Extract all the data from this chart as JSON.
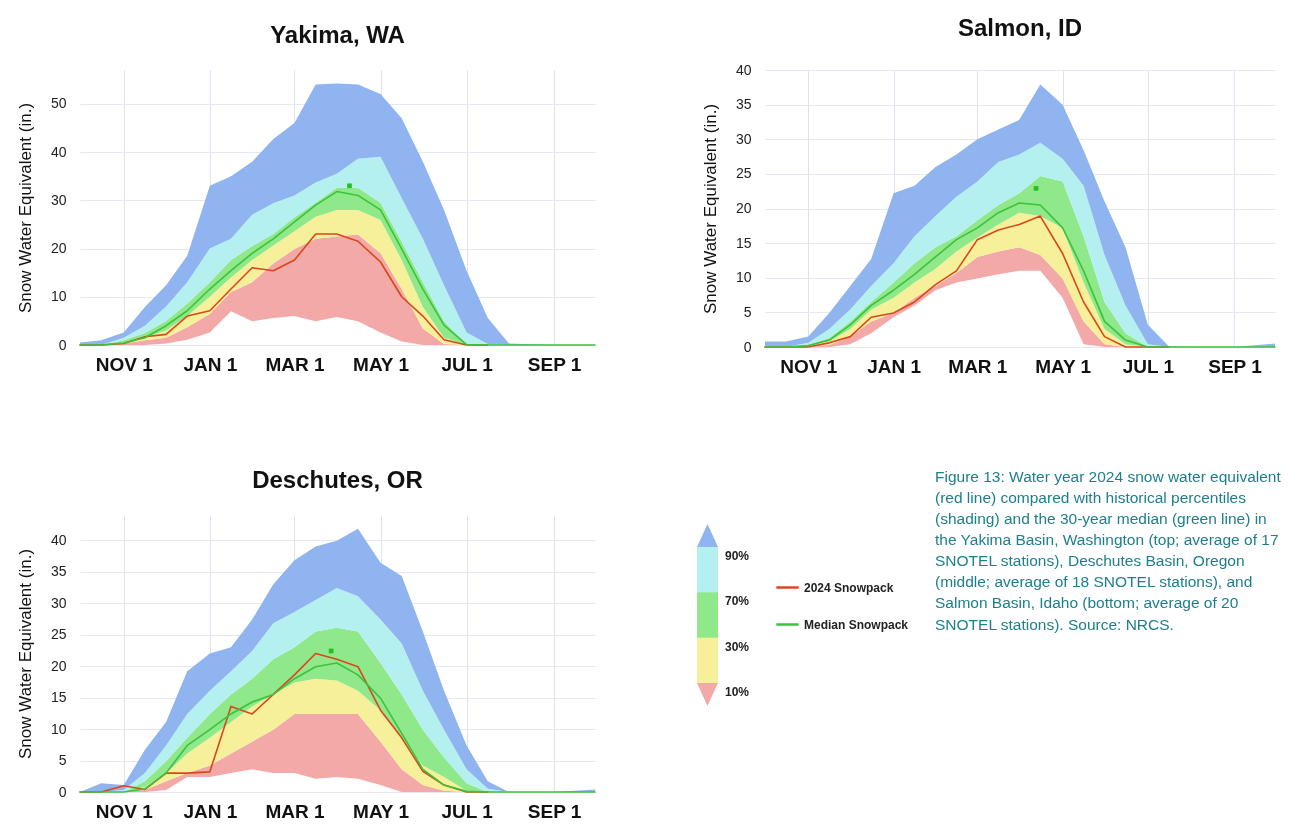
{
  "chart_data": [
    {
      "type": "area",
      "stacked": true,
      "title": "Yakima, WA",
      "ylabel": "Snow Water Equivalent (in.)",
      "x": [
        "2023-10-01",
        "2023-10-16",
        "2023-11-01",
        "2023-11-16",
        "2023-12-01",
        "2023-12-16",
        "2024-01-01",
        "2024-01-16",
        "2024-01-31",
        "2024-02-15",
        "2024-03-01",
        "2024-03-16",
        "2024-03-31",
        "2024-04-15",
        "2024-05-01",
        "2024-05-16",
        "2024-05-31",
        "2024-06-15",
        "2024-07-01",
        "2024-07-16",
        "2024-07-31",
        "2024-09-01",
        "2024-09-30"
      ],
      "xlim": [
        "2023-10-01",
        "2024-09-30"
      ],
      "xticks": [
        {
          "value": "2023-11-01",
          "label": "NOV 1"
        },
        {
          "value": "2024-01-01",
          "label": "JAN 1"
        },
        {
          "value": "2024-03-01",
          "label": "MAR 1"
        },
        {
          "value": "2024-05-01",
          "label": "MAY 1"
        },
        {
          "value": "2024-07-01",
          "label": "JUL 1"
        },
        {
          "value": "2024-09-01",
          "label": "SEP 1"
        }
      ],
      "ylim": [
        0,
        57
      ],
      "yticks": [
        0,
        10,
        20,
        30,
        40,
        50
      ],
      "grid": true,
      "series": [
        {
          "color": "#ffffff",
          "values": [
            0,
            0,
            0,
            0,
            0.3,
            1.1,
            2.6,
            7,
            4.9,
            5.6,
            6,
            4.9,
            5.8,
            4.9,
            2.6,
            0.7,
            0,
            0,
            0,
            0,
            0,
            0,
            0
          ]
        },
        {
          "color": "#f2a9a8",
          "values": [
            0,
            0,
            0.3,
            1,
            1.2,
            2.6,
            3.8,
            4,
            8.1,
            11.3,
            13.9,
            17.1,
            16.7,
            18,
            16.4,
            10.9,
            3.4,
            0.2,
            0,
            0,
            0,
            0,
            0
          ]
        },
        {
          "color": "#f7f09a",
          "values": [
            0,
            0,
            0.2,
            0.5,
            1.5,
            2.3,
            3.6,
            3,
            4.6,
            3.7,
            3.7,
            4.6,
            5.5,
            5.1,
            6.9,
            6,
            4.5,
            1.3,
            0,
            0,
            0,
            0,
            0
          ]
        },
        {
          "color": "#8fe88a",
          "values": [
            0,
            0,
            0.5,
            1,
            2,
            2.6,
            3,
            3.6,
            2.9,
            2.4,
            2.9,
            2.9,
            4.6,
            4.6,
            3.6,
            3.8,
            5.1,
            3.4,
            0,
            0,
            0,
            0,
            0
          ]
        },
        {
          "color": "#b5f0f0",
          "values": [
            0,
            0,
            0.5,
            1.5,
            3,
            4.4,
            7,
            4.4,
            6.5,
            6.4,
            4.5,
            4.2,
            2.9,
            6,
            9.5,
            9,
            9,
            7.5,
            2.6,
            0.2,
            0,
            0,
            0
          ]
        },
        {
          "color": "#8fb4ef",
          "values": [
            0.5,
            1,
            1.1,
            3.9,
            4.4,
            5.5,
            13,
            13,
            11,
            13.3,
            15,
            20.3,
            18.7,
            15.4,
            13,
            16.6,
            16,
            15.6,
            12.8,
            5.4,
            0.3,
            0,
            0
          ]
        },
        {
          "type": "line",
          "color": "#d9481c",
          "values": [
            0,
            0,
            0.3,
            1.7,
            2.2,
            6,
            7.1,
            11.6,
            16,
            15.4,
            17.6,
            23,
            23,
            21.5,
            17.2,
            10,
            6,
            1.1,
            0,
            0,
            null,
            null,
            null
          ]
        },
        {
          "type": "line",
          "color": "#3cc23c",
          "values": [
            0,
            0,
            0.4,
            1.5,
            4,
            7.1,
            11.6,
            15.4,
            19,
            22,
            25.5,
            29,
            31.8,
            31,
            28,
            19.9,
            11.6,
            4.1,
            0.1,
            0,
            0,
            0,
            0
          ]
        },
        {
          "type": "scatter",
          "color": "#22c022",
          "marker": "square",
          "x": [
            "2024-04-09"
          ],
          "values": [
            33
          ]
        }
      ]
    },
    {
      "type": "area",
      "stacked": true,
      "title": "Salmon, ID",
      "ylabel": "Snow Water Equivalent (in.)",
      "x": [
        "2023-10-01",
        "2023-10-16",
        "2023-11-01",
        "2023-11-16",
        "2023-12-01",
        "2023-12-16",
        "2024-01-01",
        "2024-01-16",
        "2024-01-31",
        "2024-02-15",
        "2024-03-01",
        "2024-03-16",
        "2024-03-31",
        "2024-04-15",
        "2024-05-01",
        "2024-05-16",
        "2024-05-31",
        "2024-06-15",
        "2024-07-01",
        "2024-07-16",
        "2024-07-31",
        "2024-09-01",
        "2024-09-30"
      ],
      "xlim": [
        "2023-10-01",
        "2024-09-30"
      ],
      "xticks": [
        {
          "value": "2023-11-01",
          "label": "NOV 1"
        },
        {
          "value": "2024-01-01",
          "label": "JAN 1"
        },
        {
          "value": "2024-03-01",
          "label": "MAR 1"
        },
        {
          "value": "2024-05-01",
          "label": "MAY 1"
        },
        {
          "value": "2024-07-01",
          "label": "JUL 1"
        },
        {
          "value": "2024-09-01",
          "label": "SEP 1"
        }
      ],
      "ylim": [
        0,
        40
      ],
      "yticks": [
        0,
        5,
        10,
        15,
        20,
        25,
        30,
        35,
        40
      ],
      "grid": true,
      "series": [
        {
          "color": "#ffffff",
          "values": [
            0,
            0,
            0,
            0,
            0.4,
            2,
            4.3,
            6,
            8.2,
            9.3,
            9.9,
            10.5,
            11,
            11,
            7.1,
            0.4,
            0,
            0,
            0,
            0,
            0,
            0,
            0
          ]
        },
        {
          "color": "#f2a9a8",
          "values": [
            0,
            0,
            0,
            0.3,
            1.1,
            1.7,
            0.6,
            1.1,
            0.6,
            1.4,
            3.1,
            3.3,
            3.4,
            2.3,
            2.8,
            3.3,
            0.4,
            0,
            0,
            0,
            0,
            0,
            0
          ]
        },
        {
          "color": "#f7f09a",
          "values": [
            0,
            0,
            0.2,
            0.5,
            1.1,
            1.7,
            2.2,
            2.2,
            2.5,
            3.1,
            2.8,
            3.9,
            5,
            5.6,
            7.3,
            5.6,
            2.2,
            0.4,
            0,
            0,
            0,
            0,
            0
          ]
        },
        {
          "color": "#8fe88a",
          "values": [
            0,
            0,
            0.1,
            0.5,
            1.1,
            1.1,
            2.2,
            2.8,
            3.1,
            2.2,
            2.5,
            2.8,
            2.8,
            5.8,
            6.7,
            6.7,
            3.9,
            1.6,
            0,
            0,
            0,
            0,
            0
          ]
        },
        {
          "color": "#b5f0f0",
          "values": [
            0,
            0,
            0.3,
            1.3,
            1.7,
            2.3,
            2.8,
            3.9,
            4.5,
            5.7,
            5.6,
            6.2,
            5.6,
            4.8,
            3.3,
            7.3,
            6.8,
            4,
            0.4,
            0,
            0,
            0,
            0
          ]
        },
        {
          "color": "#8fb4ef",
          "values": [
            0.8,
            0.8,
            0.9,
            2.3,
            3.4,
            3.9,
            10.1,
            7.3,
            7.1,
            6.1,
            6.1,
            4.7,
            5,
            8.4,
            7.8,
            5.1,
            7.7,
            8.4,
            2.8,
            0.1,
            0,
            0,
            0.5
          ]
        },
        {
          "type": "line",
          "color": "#d9481c",
          "values": [
            0,
            0,
            0,
            0.6,
            1.5,
            4.3,
            4.9,
            6.5,
            9,
            11,
            15.5,
            16.9,
            17.7,
            18.9,
            13.5,
            6.5,
            1.5,
            0,
            0,
            0,
            null,
            null,
            null
          ]
        },
        {
          "type": "line",
          "color": "#3cc23c",
          "values": [
            0,
            0,
            0.2,
            1,
            3.2,
            6,
            8.2,
            10.5,
            13,
            15.5,
            17.2,
            19.4,
            20.8,
            20.5,
            17.2,
            11,
            3.7,
            1,
            0,
            0,
            0,
            0,
            0
          ]
        },
        {
          "type": "scatter",
          "color": "#22c022",
          "marker": "square",
          "x": [
            "2024-04-12"
          ],
          "values": [
            22.9
          ]
        }
      ]
    },
    {
      "type": "area",
      "stacked": true,
      "title": "Deschutes, OR",
      "ylabel": "Snow Water Equivalent (in.)",
      "x": [
        "2023-10-01",
        "2023-10-16",
        "2023-11-01",
        "2023-11-16",
        "2023-12-01",
        "2023-12-16",
        "2024-01-01",
        "2024-01-16",
        "2024-01-31",
        "2024-02-15",
        "2024-03-01",
        "2024-03-16",
        "2024-03-31",
        "2024-04-15",
        "2024-05-01",
        "2024-05-16",
        "2024-05-31",
        "2024-06-15",
        "2024-07-01",
        "2024-07-16",
        "2024-07-31",
        "2024-09-01",
        "2024-09-30"
      ],
      "xlim": [
        "2023-10-01",
        "2024-09-30"
      ],
      "xticks": [
        {
          "value": "2023-11-01",
          "label": "NOV 1"
        },
        {
          "value": "2024-01-01",
          "label": "JAN 1"
        },
        {
          "value": "2024-03-01",
          "label": "MAR 1"
        },
        {
          "value": "2024-05-01",
          "label": "MAY 1"
        },
        {
          "value": "2024-07-01",
          "label": "JUL 1"
        },
        {
          "value": "2024-09-01",
          "label": "SEP 1"
        }
      ],
      "ylim": [
        0,
        44
      ],
      "yticks": [
        0,
        5,
        10,
        15,
        20,
        25,
        30,
        35,
        40
      ],
      "grid": true,
      "legend": "right",
      "annotations": [
        "90%",
        "70%",
        "30%",
        "10%",
        "Figure 13: Water year 2024 snow water equivalent (red line) compared with historical percentiles (shading) and the 30-year median (green line) in the Yakima Basin, Washington (top; average of 17 SNOTEL stations), Deschutes Basin, Oregon (middle; average of 18 SNOTEL stations), and Salmon Basin, Idaho (bottom; average of 20 SNOTEL stations). Source: NRCS."
      ],
      "series": [
        {
          "color": "#ffffff",
          "values": [
            0,
            0,
            0,
            0,
            0.3,
            2.4,
            2.4,
            3,
            3.6,
            3,
            3,
            2.1,
            2.4,
            2.1,
            1.1,
            0,
            0,
            0,
            0,
            0,
            0,
            0,
            0
          ]
        },
        {
          "color": "#f2a9a8",
          "values": [
            0,
            0,
            0,
            0.3,
            1.4,
            0.6,
            1.8,
            3.1,
            4.4,
            6.9,
            9.4,
            10.3,
            10,
            10.3,
            6.9,
            3.6,
            1.1,
            0.2,
            0,
            0,
            0,
            0,
            0
          ]
        },
        {
          "color": "#f7f09a",
          "values": [
            0,
            0,
            0,
            0.5,
            1.3,
            3.1,
            4.4,
            5,
            5.6,
            5.6,
            5,
            5.6,
            5.3,
            3.7,
            5,
            5,
            3.1,
            2.2,
            0.2,
            0,
            0,
            0,
            0
          ]
        },
        {
          "color": "#8fe88a",
          "values": [
            0,
            0,
            0,
            0.9,
            1.9,
            2.5,
            3.8,
            4.4,
            4.4,
            5.6,
            5.6,
            7.5,
            8.4,
            9.4,
            7.5,
            6.9,
            5.7,
            3.1,
            1.2,
            0,
            0,
            0,
            0
          ]
        },
        {
          "color": "#b5f0f0",
          "values": [
            0,
            0,
            0.3,
            1.3,
            2.5,
            3.8,
            3.7,
            3.7,
            4.4,
            5.7,
            5.6,
            5,
            6.3,
            5.6,
            6.9,
            8.1,
            6.2,
            4.4,
            2.2,
            0.5,
            0,
            0,
            0
          ]
        },
        {
          "color": "#8fb4ef",
          "values": [
            0,
            1.4,
            0.8,
            3.7,
            3.7,
            6.8,
            5.9,
            3.8,
            5,
            6.2,
            8.2,
            8.5,
            7.5,
            10.7,
            9,
            10.7,
            9.4,
            6.2,
            3.8,
            1.2,
            0,
            0,
            0.4
          ]
        },
        {
          "type": "line",
          "name": "2024 Snowpack",
          "color": "#d9481c",
          "values": [
            0,
            0,
            1,
            0.4,
            3,
            3,
            3.2,
            13.6,
            12.4,
            15.5,
            18.6,
            22,
            21.1,
            19.9,
            13,
            8.6,
            3.3,
            1.1,
            0,
            0,
            null,
            null,
            null
          ]
        },
        {
          "type": "line",
          "name": "Median Snowpack",
          "color": "#3cc23c",
          "values": [
            0,
            0,
            0,
            0.5,
            3,
            7.4,
            9.9,
            12.4,
            14.3,
            15.5,
            18,
            19.9,
            20.5,
            18.6,
            14.9,
            9.3,
            3.6,
            1.1,
            0.1,
            0,
            0,
            0,
            0
          ]
        },
        {
          "type": "scatter",
          "color": "#22c022",
          "marker": "square",
          "x": [
            "2024-03-27"
          ],
          "values": [
            22.4
          ]
        }
      ]
    }
  ]
}
